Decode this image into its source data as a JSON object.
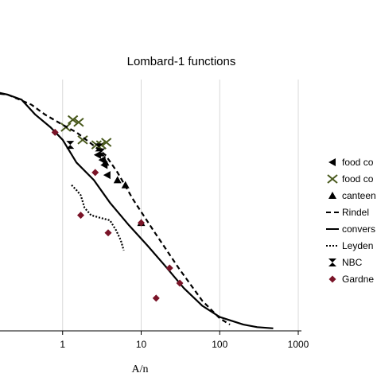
{
  "chart_data": {
    "type": "scatter",
    "title": "Lombard-1 functions",
    "xlabel": "A/n",
    "ylabel": "",
    "x_scale": "log",
    "xlim": [
      0.1,
      1000
    ],
    "ylim": [
      0,
      10
    ],
    "x_ticks": [
      {
        "value": 1,
        "label": "1"
      },
      {
        "value": 10,
        "label": "10"
      },
      {
        "value": 100,
        "label": "100"
      },
      {
        "value": 1000,
        "label": "1000"
      }
    ],
    "grid": "vertical",
    "legend_position": "right",
    "series": [
      {
        "name": "food co",
        "kind": "marker",
        "marker": "triangle-left",
        "color": "#000000",
        "points": [
          [
            2.8,
            7.0
          ],
          [
            3.2,
            6.8
          ],
          [
            3.4,
            6.6
          ],
          [
            3.7,
            6.2
          ]
        ]
      },
      {
        "name": "food co",
        "kind": "marker",
        "marker": "bowtie",
        "color": "#4a5a1e",
        "points": [
          [
            1.1,
            8.1
          ],
          [
            1.35,
            8.4
          ],
          [
            1.6,
            8.3
          ],
          [
            1.8,
            7.6
          ],
          [
            2.7,
            7.4
          ],
          [
            3.1,
            7.4
          ],
          [
            3.6,
            7.5
          ]
        ]
      },
      {
        "name": "canteen",
        "kind": "marker",
        "marker": "triangle-up",
        "color": "#000000",
        "points": [
          [
            3.5,
            6.7
          ],
          [
            5.0,
            6.0
          ],
          [
            6.3,
            5.8
          ],
          [
            10.0,
            4.3
          ]
        ]
      },
      {
        "name": "Rindel",
        "kind": "line",
        "dash": "6,4",
        "color": "#000000",
        "width": 2.2,
        "points": [
          [
            0.1,
            9.5
          ],
          [
            0.2,
            9.4
          ],
          [
            0.4,
            9.0
          ],
          [
            0.6,
            8.6
          ],
          [
            1.0,
            8.2
          ],
          [
            1.5,
            7.9
          ],
          [
            2.2,
            7.5
          ],
          [
            3.5,
            7.0
          ],
          [
            5.0,
            6.3
          ],
          [
            8.0,
            5.2
          ],
          [
            15.0,
            3.9
          ],
          [
            30.0,
            2.5
          ],
          [
            60.0,
            1.2
          ],
          [
            100.0,
            0.5
          ],
          [
            135.0,
            0.25
          ]
        ]
      },
      {
        "name": "convers",
        "kind": "line",
        "dash": "",
        "color": "#000000",
        "width": 2.2,
        "points": [
          [
            0.1,
            9.6
          ],
          [
            0.2,
            9.4
          ],
          [
            0.3,
            9.2
          ],
          [
            0.45,
            8.6
          ],
          [
            0.7,
            8.1
          ],
          [
            1.0,
            7.6
          ],
          [
            1.5,
            6.7
          ],
          [
            2.5,
            6.0
          ],
          [
            4.0,
            5.1
          ],
          [
            7.0,
            4.2
          ],
          [
            12.0,
            3.4
          ],
          [
            20.0,
            2.6
          ],
          [
            35.0,
            1.7
          ],
          [
            60.0,
            1.0
          ],
          [
            100.0,
            0.55
          ],
          [
            200.0,
            0.25
          ],
          [
            300.0,
            0.15
          ],
          [
            480.0,
            0.1
          ]
        ]
      },
      {
        "name": "Leyden",
        "kind": "line",
        "dash": "2,2",
        "color": "#000000",
        "width": 2.2,
        "points": [
          [
            1.3,
            5.8
          ],
          [
            1.5,
            5.6
          ],
          [
            1.7,
            5.4
          ],
          [
            1.9,
            4.9
          ],
          [
            2.3,
            4.6
          ],
          [
            3.0,
            4.5
          ],
          [
            4.0,
            4.4
          ],
          [
            4.8,
            4.0
          ],
          [
            5.5,
            3.6
          ],
          [
            6.0,
            3.2
          ]
        ]
      },
      {
        "name": "NBC",
        "kind": "marker",
        "marker": "hourglass",
        "color": "#000000",
        "points": [
          [
            1.25,
            7.4
          ],
          [
            2.9,
            7.3
          ],
          [
            3.1,
            7.1
          ]
        ]
      },
      {
        "name": "Gardne",
        "kind": "marker",
        "marker": "diamond",
        "color": "#7a1428",
        "points": [
          [
            0.8,
            7.9
          ],
          [
            2.6,
            6.3
          ],
          [
            1.7,
            4.6
          ],
          [
            3.8,
            3.9
          ],
          [
            10.0,
            4.3
          ],
          [
            23.0,
            2.5
          ],
          [
            31.0,
            1.9
          ],
          [
            15.5,
            1.3
          ]
        ]
      }
    ]
  }
}
